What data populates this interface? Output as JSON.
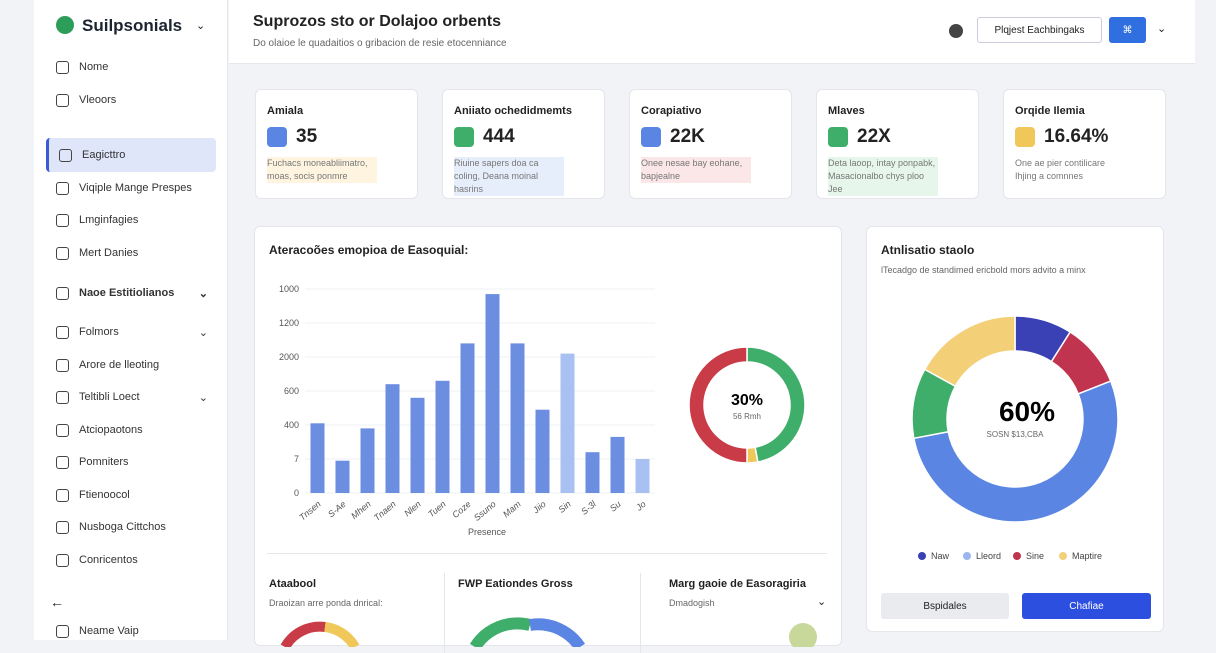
{
  "sidebar": {
    "brand": "Suilpsonials",
    "items": [
      "Nome",
      "Vleoors",
      "Eagicttro",
      "Viqiple Mange Prespes",
      "Lmginfagies",
      "Mert Danies",
      "Naoe Estitiolianos",
      "Folmors",
      "Arore de lleoting",
      "Teltibli Loect",
      "Atciopaotons",
      "Pomniters",
      "Ftienoocol",
      "Nusboga Cittchos",
      "Conricentos"
    ],
    "footer": "Neame Vaip"
  },
  "header": {
    "title": "Suprozos sto or Dolajoo orbents",
    "subtitle": "Do olaioe le quadaitios o gribacion de resie etocenniance",
    "button": "Plqjest Eachbingaks",
    "icon_button": "⌘"
  },
  "kpis": [
    {
      "label": "Amiala",
      "value": "35",
      "text": "Fuchacs moneabliimatro, moas, socis ponmre"
    },
    {
      "label": "Aniiato ochedidmemts",
      "value": "444",
      "text": "Riuine sapers doa ca coling, Deana moinal hasrins"
    },
    {
      "label": "Corapiativo",
      "value": "22K",
      "text": "Onee nesae bay eohane, bapjealne"
    },
    {
      "label": "Mlaves",
      "value": "22X",
      "text": "Deta laoop, intay ponpabk, Masacionalbo chys ploo Jee"
    },
    {
      "label": "Orqide Ilemia",
      "value": "16.64%",
      "text": "One ae pier contilicare Ihjing a comnnes"
    }
  ],
  "bar_chart": {
    "type": "bar",
    "title": "Ateracoões emopioa de Easoquial:",
    "x_label": "Presence",
    "categories": [
      "Tnsen",
      "S-Ae",
      "Mhen",
      "Tnaen",
      "Nlen",
      "Tuen",
      "Coze",
      "Ssuno",
      "Mam",
      "Jiio",
      "Sin",
      "S-3l",
      "Su",
      "Jo"
    ],
    "values": [
      2.05,
      0.95,
      1.9,
      3.2,
      2.8,
      3.3,
      4.4,
      5.85,
      4.4,
      2.45,
      4.1,
      1.2,
      1.65,
      1.0
    ],
    "colors": [
      "#6b8ee0",
      "#6b8ee0",
      "#6b8ee0",
      "#6b8ee0",
      "#6b8ee0",
      "#6b8ee0",
      "#6b8ee0",
      "#6b8ee0",
      "#6b8ee0",
      "#6b8ee0",
      "#a9c0f2",
      "#6b8ee0",
      "#6b8ee0",
      "#a9c0f2"
    ],
    "ylim": [
      0,
      6
    ],
    "yticks": [
      {
        "value": 0,
        "label": "0"
      },
      {
        "value": 1,
        "label": "7"
      },
      {
        "value": 2,
        "label": "400"
      },
      {
        "value": 3,
        "label": "600"
      },
      {
        "value": 4,
        "label": "2000"
      },
      {
        "value": 5,
        "label": "1200"
      },
      {
        "value": 6,
        "label": "1000"
      }
    ],
    "grid": true
  },
  "small_donut": {
    "type": "pie",
    "center": "30%",
    "sub": "56 Rmh",
    "values": [
      47,
      3,
      50
    ],
    "colors": [
      "#3fae6a",
      "#f0c85a",
      "#c93b46"
    ]
  },
  "donut_card": {
    "type": "pie",
    "title": "Atnlisatio staolo",
    "subtitle": "lTecadgo de standimed ericbold mors advito a minx",
    "center": "60%",
    "sub": "SOSN $13,CBA",
    "values": [
      9,
      10,
      53,
      11,
      17
    ],
    "colors": [
      "#3a41b5",
      "#c0344f",
      "#5b85e3",
      "#3fae6a",
      "#f3d077"
    ],
    "legend": [
      {
        "name": "Naw",
        "color": "#3a41b5"
      },
      {
        "name": "Lleord",
        "color": "#9ab6ee"
      },
      {
        "name": "Sine",
        "color": "#c0344f"
      },
      {
        "name": "Maptire",
        "color": "#f3d077"
      }
    ],
    "buttons": [
      "Bspidales",
      "Chafiae"
    ]
  },
  "bottom": [
    {
      "title": "Ataabool",
      "text": "Draoizan arre ponda dnrical:"
    },
    {
      "title": "FWP Eationdes Gross"
    },
    {
      "title": "Marg gaoie de Easoragiria",
      "text": "Dmadogish"
    }
  ]
}
